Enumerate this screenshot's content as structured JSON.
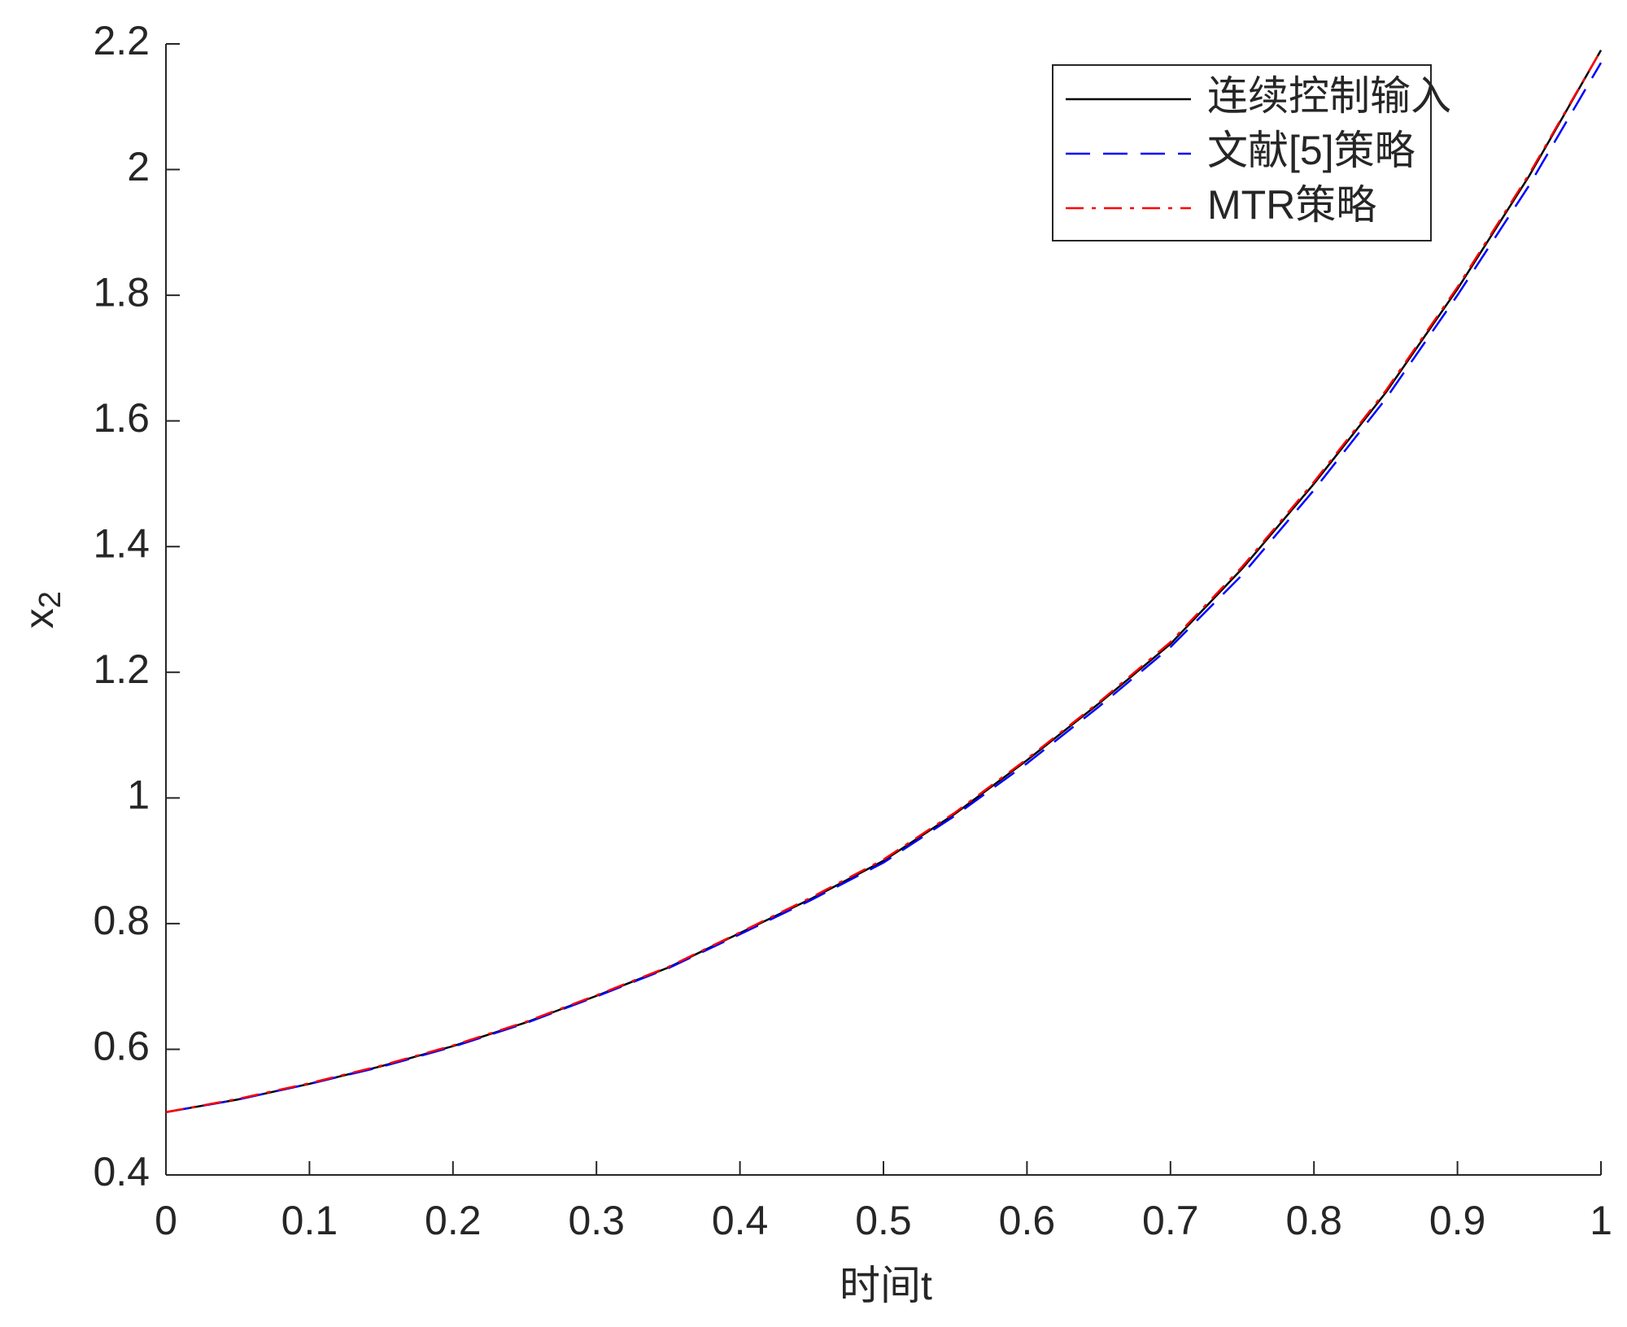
{
  "chart_data": {
    "type": "line",
    "xlabel": "时间t",
    "ylabel": "x",
    "ylabel_subscript": "2",
    "x": [
      0,
      0.05,
      0.1,
      0.15,
      0.2,
      0.25,
      0.3,
      0.35,
      0.4,
      0.45,
      0.5,
      0.55,
      0.6,
      0.65,
      0.7,
      0.75,
      0.8,
      0.85,
      0.9,
      0.95,
      1
    ],
    "series": [
      {
        "name": "连续控制输入",
        "color": "#000000",
        "style": "solid",
        "values": [
          0.5,
          0.52,
          0.545,
          0.573,
          0.605,
          0.642,
          0.685,
          0.73,
          0.785,
          0.84,
          0.9,
          0.975,
          1.06,
          1.15,
          1.245,
          1.365,
          1.5,
          1.645,
          1.81,
          1.99,
          2.19
        ]
      },
      {
        "name": "文献[5]策略",
        "color": "#0000ff",
        "style": "dashed",
        "values": [
          0.5,
          0.52,
          0.545,
          0.572,
          0.604,
          0.641,
          0.684,
          0.729,
          0.783,
          0.838,
          0.897,
          0.972,
          1.055,
          1.145,
          1.24,
          1.355,
          1.49,
          1.635,
          1.8,
          1.975,
          2.17
        ]
      },
      {
        "name": "MTR策略",
        "color": "#ff0000",
        "style": "dashdot",
        "values": [
          0.5,
          0.521,
          0.546,
          0.574,
          0.606,
          0.643,
          0.686,
          0.731,
          0.786,
          0.842,
          0.902,
          0.977,
          1.062,
          1.152,
          1.248,
          1.368,
          1.503,
          1.648,
          1.813,
          1.993,
          2.19
        ]
      }
    ],
    "xlim": [
      0,
      1
    ],
    "xticks": [
      0,
      0.1,
      0.2,
      0.3,
      0.4,
      0.5,
      0.6,
      0.7,
      0.8,
      0.9,
      1
    ],
    "ylim": [
      0.4,
      2.2
    ],
    "yticks": [
      0.4,
      0.6,
      0.8,
      1,
      1.2,
      1.4,
      1.6,
      1.8,
      2,
      2.2
    ],
    "legend": "upper right",
    "grid": false
  }
}
